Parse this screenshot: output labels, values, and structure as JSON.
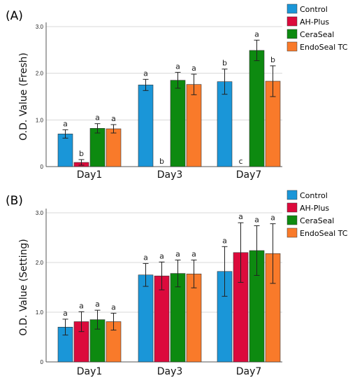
{
  "colors": {
    "Control": "#1a96d8",
    "AH-Plus": "#dc0a3c",
    "CeraSeal": "#0d8a10",
    "EndoSeal TCS": "#f97a2a"
  },
  "chart_data": [
    {
      "type": "bar",
      "panel_label": "(A)",
      "ylabel": "O.D. Value (Fresh)",
      "categories": [
        "Day1",
        "Day3",
        "Day7"
      ],
      "ylim": [
        0,
        3.0
      ],
      "yticks": [
        "0",
        "1.0",
        "2.0",
        "3.0"
      ],
      "grid": true,
      "legend_position": "top-right",
      "series": [
        {
          "name": "Control",
          "values": [
            0.7,
            1.75,
            1.82
          ],
          "error": [
            0.09,
            0.12,
            0.27
          ],
          "letters": [
            "a",
            "a",
            "b"
          ]
        },
        {
          "name": "AH-Plus",
          "values": [
            0.09,
            0.0,
            0.0
          ],
          "error": [
            0.06,
            0.0,
            0.0
          ],
          "letters": [
            "b",
            "b",
            "c"
          ]
        },
        {
          "name": "CeraSeal",
          "values": [
            0.82,
            1.85,
            2.49
          ],
          "error": [
            0.1,
            0.17,
            0.22
          ],
          "letters": [
            "a",
            "a",
            "a"
          ]
        },
        {
          "name": "EndoSeal TCS",
          "values": [
            0.81,
            1.76,
            1.83
          ],
          "error": [
            0.09,
            0.22,
            0.33
          ],
          "letters": [
            "a",
            "a",
            "b"
          ]
        }
      ]
    },
    {
      "type": "bar",
      "panel_label": "(B)",
      "ylabel": "O.D. Value (Setting)",
      "categories": [
        "Day1",
        "Day3",
        "Day7"
      ],
      "ylim": [
        0,
        3.0
      ],
      "yticks": [
        "0",
        "1.0",
        "2.0",
        "3.0"
      ],
      "grid": true,
      "legend_position": "top-right",
      "series": [
        {
          "name": "Control",
          "values": [
            0.7,
            1.75,
            1.82
          ],
          "error": [
            0.16,
            0.23,
            0.5
          ],
          "letters": [
            "a",
            "a",
            "a"
          ]
        },
        {
          "name": "AH-Plus",
          "values": [
            0.81,
            1.73,
            2.2
          ],
          "error": [
            0.2,
            0.28,
            0.6
          ],
          "letters": [
            "a",
            "a",
            "a"
          ]
        },
        {
          "name": "CeraSeal",
          "values": [
            0.85,
            1.78,
            2.24
          ],
          "error": [
            0.19,
            0.27,
            0.5
          ],
          "letters": [
            "a",
            "a",
            "a"
          ]
        },
        {
          "name": "EndoSeal TCS",
          "values": [
            0.81,
            1.77,
            2.18
          ],
          "error": [
            0.17,
            0.28,
            0.6
          ],
          "letters": [
            "a",
            "a",
            "a"
          ]
        }
      ]
    }
  ]
}
